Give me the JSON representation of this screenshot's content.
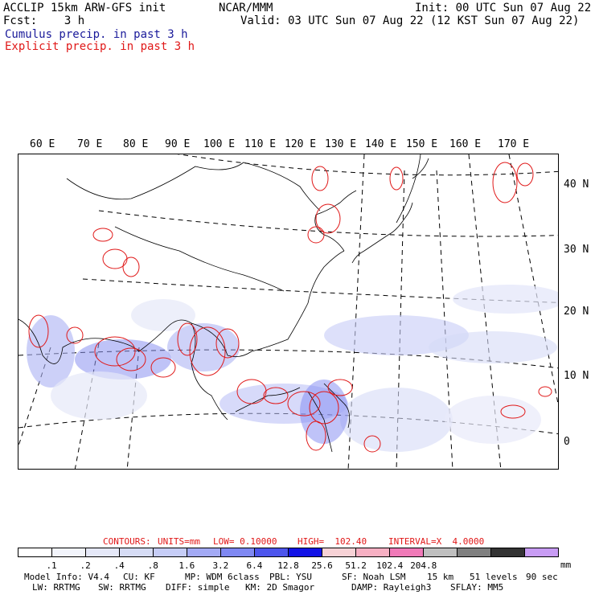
{
  "header": {
    "model_line": "ACCLIP 15km ARW-GFS init",
    "fcst_line": "Fcst:    3 h",
    "org": "NCAR/MMM",
    "init_line": "Init: 00 UTC Sun 07 Aug 22",
    "valid_line": "Valid: 03 UTC Sun 07 Aug 22 (12 KST Sun 07 Aug 22)",
    "field1": "Cumulus precip. in past 3 h",
    "field2": "Explicit precip. in past 3 h"
  },
  "map": {
    "lon_labels": [
      "60 E",
      "70 E",
      "80 E",
      "90 E",
      "100 E",
      "110 E",
      "120 E",
      "130 E",
      "140 E",
      "150 E",
      "160 E",
      "170 E"
    ],
    "lat_labels": [
      "40 N",
      "30 N",
      "20 N",
      "10 N",
      "0"
    ]
  },
  "contour_info": {
    "contours": "CONTOURS:",
    "units": "UNITS=mm",
    "low": "LOW= 0.10000",
    "high": "HIGH=  102.40",
    "interval": "INTERVAL=X  4.0000"
  },
  "colorbar": {
    "colors": [
      "#ffffff",
      "#f2f4fb",
      "#e5e8f8",
      "#d6dcf5",
      "#c6cdf7",
      "#a3aaf5",
      "#7f88f2",
      "#4d55ec",
      "#1212e6",
      "#f7d2d6",
      "#f7b0c3",
      "#f07ab8",
      "#bfbfbf",
      "#7f7f7f",
      "#333333",
      "#c89cf4"
    ],
    "ticks": [
      ".1",
      ".2",
      ".4",
      ".8",
      "1.6",
      "3.2",
      "6.4",
      "12.8",
      "25.6",
      "51.2",
      "102.4",
      "204.8"
    ],
    "unit": "mm"
  },
  "footer": {
    "model_info": "Model Info: V4.4",
    "cu": "CU: KF",
    "mp": "MP: WDM 6class",
    "pbl": "PBL: YSU",
    "sf": "SF: Noah LSM",
    "res": "15 km",
    "levels": "51 levels",
    "dt": "90 sec",
    "lw": "LW: RRTMG",
    "sw": "SW: RRTMG",
    "diff": "DIFF: simple",
    "km": "KM: 2D Smagor",
    "damp": "DAMP: Rayleigh3",
    "sflay": "SFLAY: MM5"
  }
}
